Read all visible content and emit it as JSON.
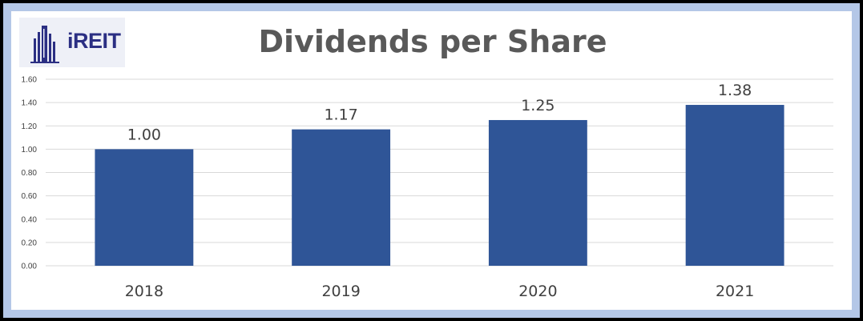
{
  "logo": {
    "text": "iREIT"
  },
  "colors": {
    "bar": "#2f5597",
    "frame": "#b4c7e7",
    "grid": "#d9d9d9",
    "text": "#404040",
    "title": "#595959"
  },
  "chart_data": {
    "type": "bar",
    "title": "Dividends per Share",
    "xlabel": "",
    "ylabel": "",
    "categories": [
      "2018",
      "2019",
      "2020",
      "2021"
    ],
    "values": [
      1.0,
      1.17,
      1.25,
      1.38
    ],
    "value_labels": [
      "1.00",
      "1.17",
      "1.25",
      "1.38"
    ],
    "ylim": [
      0,
      1.6
    ],
    "yticks": [
      0.0,
      0.2,
      0.4,
      0.6,
      0.8,
      1.0,
      1.2,
      1.4,
      1.6
    ],
    "ytick_labels": [
      "0.00",
      "0.20",
      "0.40",
      "0.60",
      "0.80",
      "1.00",
      "1.20",
      "1.40",
      "1.60"
    ],
    "grid": true,
    "legend": "none"
  }
}
